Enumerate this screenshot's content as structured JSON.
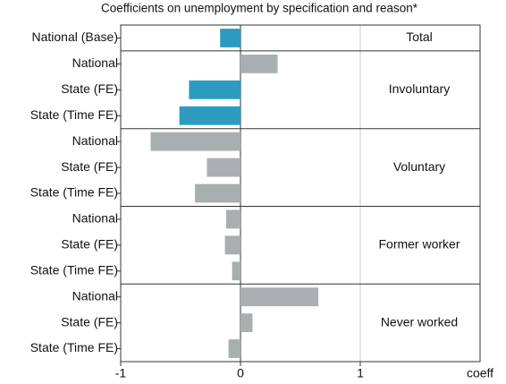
{
  "chart_data": {
    "type": "bar",
    "title": "Coefficients on unemployment by specification and reason*",
    "xlabel": "coeff",
    "xlim": [
      -1,
      2
    ],
    "xticks": [
      -1,
      0,
      1
    ],
    "groups": [
      {
        "name": "Total",
        "categories": [
          "National (Base)"
        ],
        "values": [
          -0.17
        ],
        "colors": [
          "#2b9cc0"
        ]
      },
      {
        "name": "Involuntary",
        "categories": [
          "National",
          "State (FE)",
          "State (Time FE)"
        ],
        "values": [
          0.31,
          -0.43,
          -0.51
        ],
        "colors": [
          "#a9aeb1",
          "#2b9cc0",
          "#2b9cc0"
        ]
      },
      {
        "name": "Voluntary",
        "categories": [
          "National",
          "State (FE)",
          "State (Time FE)"
        ],
        "values": [
          -0.75,
          -0.28,
          -0.38
        ],
        "colors": [
          "#a9aeb1",
          "#a9aeb1",
          "#a9aeb1"
        ]
      },
      {
        "name": "Former worker",
        "categories": [
          "National",
          "State (FE)",
          "State (Time FE)"
        ],
        "values": [
          -0.12,
          -0.13,
          -0.07
        ],
        "colors": [
          "#a9aeb1",
          "#a9aeb1",
          "#a9aeb1"
        ]
      },
      {
        "name": "Never worked",
        "categories": [
          "National",
          "State (FE)",
          "State (Time FE)"
        ],
        "values": [
          0.65,
          0.1,
          -0.1
        ],
        "colors": [
          "#a9aeb1",
          "#a9aeb1",
          "#a9aeb1"
        ]
      }
    ]
  }
}
